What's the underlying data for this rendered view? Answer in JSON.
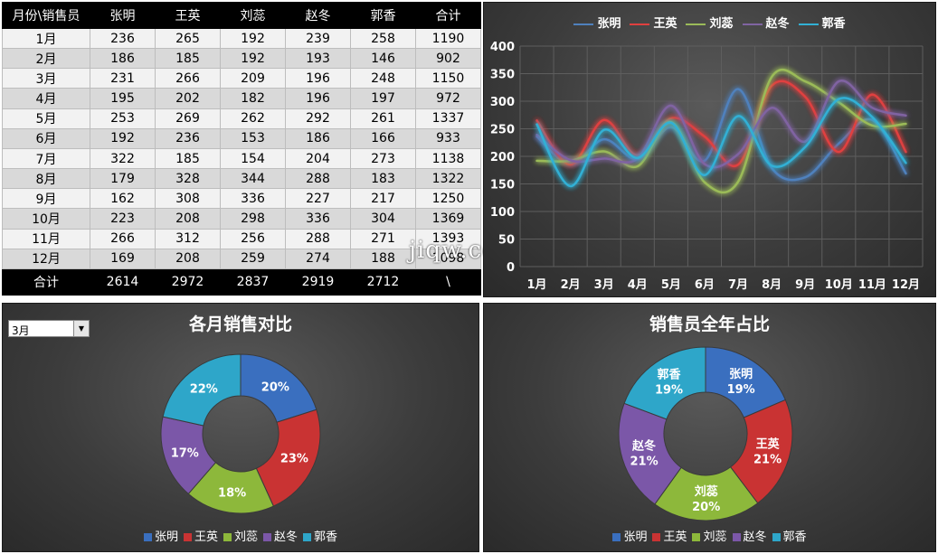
{
  "table": {
    "header": [
      "月份\\销售员",
      "张明",
      "王英",
      "刘蕊",
      "赵冬",
      "郭香",
      "合计"
    ],
    "rows": [
      [
        "1月",
        "236",
        "265",
        "192",
        "239",
        "258",
        "1190"
      ],
      [
        "2月",
        "186",
        "185",
        "192",
        "193",
        "146",
        "902"
      ],
      [
        "3月",
        "231",
        "266",
        "209",
        "196",
        "248",
        "1150"
      ],
      [
        "4月",
        "195",
        "202",
        "182",
        "196",
        "197",
        "972"
      ],
      [
        "5月",
        "253",
        "269",
        "262",
        "292",
        "261",
        "1337"
      ],
      [
        "6月",
        "192",
        "236",
        "153",
        "186",
        "166",
        "933"
      ],
      [
        "7月",
        "322",
        "185",
        "154",
        "204",
        "273",
        "1138"
      ],
      [
        "8月",
        "179",
        "328",
        "344",
        "288",
        "183",
        "1322"
      ],
      [
        "9月",
        "162",
        "308",
        "336",
        "227",
        "217",
        "1250"
      ],
      [
        "10月",
        "223",
        "208",
        "298",
        "336",
        "304",
        "1369"
      ],
      [
        "11月",
        "266",
        "312",
        "256",
        "288",
        "271",
        "1393"
      ],
      [
        "12月",
        "169",
        "208",
        "259",
        "274",
        "188",
        "1098"
      ]
    ],
    "footer": [
      "合计",
      "2614",
      "2972",
      "2837",
      "2919",
      "2712",
      "\\"
    ]
  },
  "watermark": "jiqw.com",
  "dropdown": {
    "selected": "3月",
    "arrow_icon": "dropdown-arrow-icon"
  },
  "chart_data": [
    {
      "type": "line",
      "title": "",
      "categories": [
        "1月",
        "2月",
        "3月",
        "4月",
        "5月",
        "6月",
        "7月",
        "8月",
        "9月",
        "10月",
        "11月",
        "12月"
      ],
      "ylim": [
        0,
        400
      ],
      "yticks": [
        0,
        50,
        100,
        150,
        200,
        250,
        300,
        350,
        400
      ],
      "grid": true,
      "smooth": true,
      "legend": "top",
      "series": [
        {
          "name": "张明",
          "color": "#4f81bd",
          "values": [
            236,
            186,
            231,
            195,
            253,
            192,
            322,
            179,
            162,
            223,
            266,
            169
          ]
        },
        {
          "name": "王英",
          "color": "#e0403f",
          "values": [
            265,
            185,
            266,
            202,
            269,
            236,
            185,
            328,
            308,
            208,
            312,
            208
          ]
        },
        {
          "name": "刘蕊",
          "color": "#9bbb59",
          "values": [
            192,
            192,
            209,
            182,
            262,
            153,
            154,
            344,
            336,
            298,
            256,
            259
          ]
        },
        {
          "name": "赵冬",
          "color": "#8064a2",
          "values": [
            239,
            193,
            196,
            196,
            292,
            186,
            204,
            288,
            227,
            336,
            288,
            274
          ]
        },
        {
          "name": "郭香",
          "color": "#31b0d5",
          "values": [
            258,
            146,
            248,
            197,
            261,
            166,
            273,
            183,
            217,
            304,
            271,
            188
          ]
        }
      ]
    },
    {
      "type": "pie",
      "title": "各月销售对比",
      "donut": true,
      "legend": "bottom",
      "categories": [
        "张明",
        "王英",
        "刘蕊",
        "赵冬",
        "郭香"
      ],
      "values": [
        231,
        266,
        209,
        196,
        248
      ],
      "labels": [
        "20%",
        "23%",
        "18%",
        "17%",
        "22%"
      ],
      "colors": [
        "#3a6fbf",
        "#c93333",
        "#8db83b",
        "#7b57a8",
        "#2ea6c9"
      ]
    },
    {
      "type": "pie",
      "title": "销售员全年占比",
      "donut": true,
      "legend": "bottom",
      "categories": [
        "张明",
        "王英",
        "刘蕊",
        "赵冬",
        "郭香"
      ],
      "values": [
        2614,
        2972,
        2837,
        2919,
        2712
      ],
      "labels": [
        "19%",
        "21%",
        "20%",
        "21%",
        "19%"
      ],
      "colors": [
        "#3a6fbf",
        "#c93333",
        "#8db83b",
        "#7b57a8",
        "#2ea6c9"
      ]
    }
  ]
}
